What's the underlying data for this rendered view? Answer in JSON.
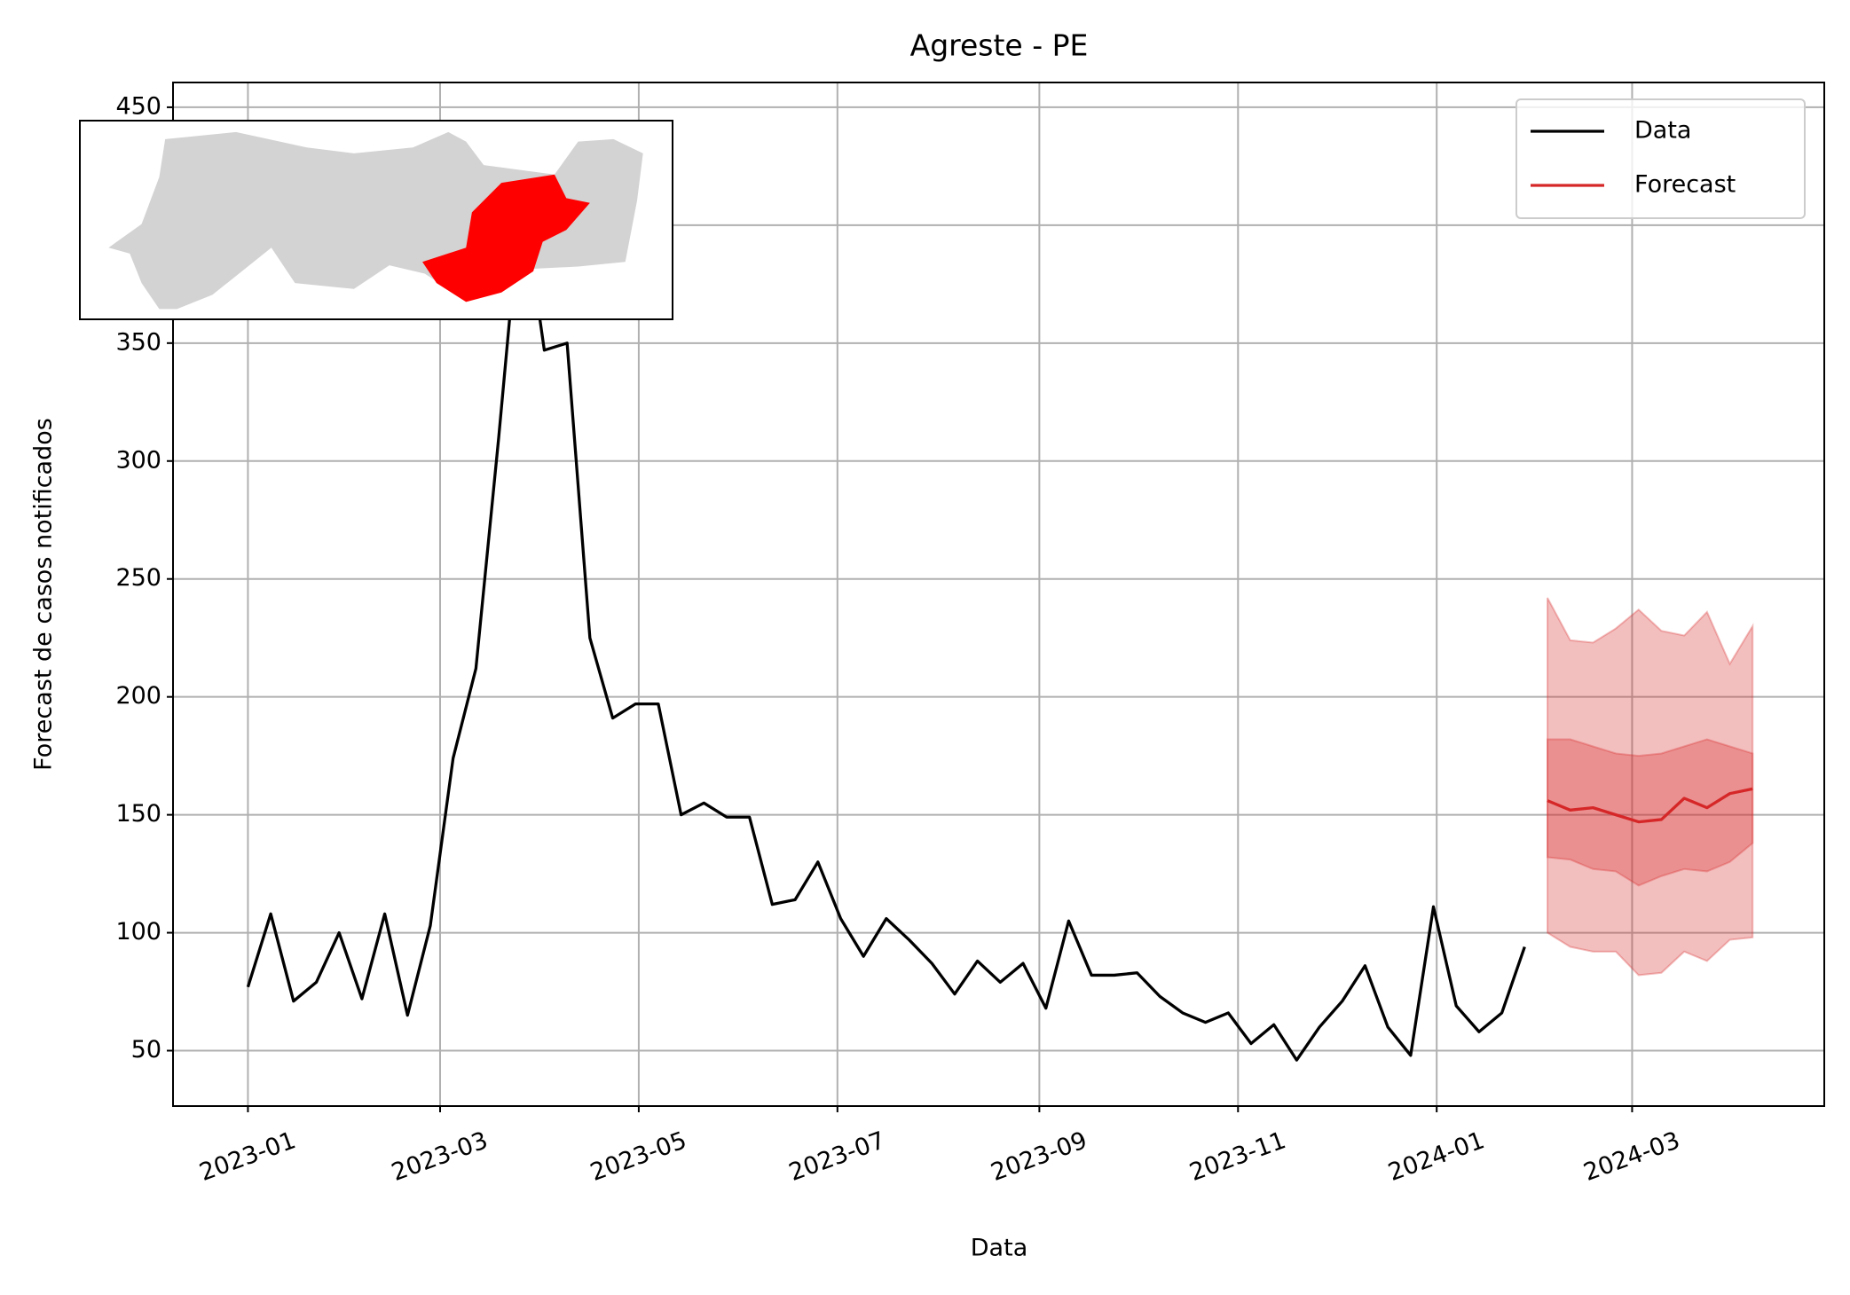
{
  "chart_data": {
    "type": "line",
    "title": "Agreste - PE",
    "xlabel": "Data",
    "ylabel": "Forecast de casos notificados",
    "xlim": [
      -23,
      484
    ],
    "xticks": [
      {
        "value": 0,
        "label": "2023-01"
      },
      {
        "value": 59,
        "label": "2023-03"
      },
      {
        "value": 120,
        "label": "2023-05"
      },
      {
        "value": 181,
        "label": "2023-07"
      },
      {
        "value": 243,
        "label": "2023-09"
      },
      {
        "value": 304,
        "label": "2023-11"
      },
      {
        "value": 365,
        "label": "2024-01"
      },
      {
        "value": 425,
        "label": "2024-03"
      }
    ],
    "ylim": [
      26.5,
      460.5
    ],
    "yticks": [
      50,
      100,
      150,
      200,
      250,
      300,
      350,
      400,
      450
    ],
    "grid": true,
    "legend": "upper right",
    "series": [
      {
        "name": "Data",
        "color": "#000000",
        "x": [
          0,
          7,
          14,
          21,
          28,
          35,
          42,
          49,
          56,
          63,
          70,
          77,
          84,
          91,
          98,
          105,
          112,
          119,
          126,
          133,
          140,
          147,
          154,
          161,
          168,
          175,
          182,
          189,
          196,
          203,
          210,
          217,
          224,
          231,
          238,
          245,
          252,
          259,
          266,
          273,
          280,
          287,
          294,
          301,
          308,
          315,
          322,
          329,
          336,
          343,
          350,
          357,
          364,
          371,
          378,
          385,
          392
        ],
        "values": [
          77,
          108,
          71,
          79,
          100,
          72,
          108,
          65,
          103,
          174,
          212,
          310,
          415,
          347,
          350,
          225,
          191,
          197,
          197,
          150,
          155,
          149,
          149,
          112,
          114,
          130,
          106,
          90,
          106,
          97,
          87,
          74,
          88,
          79,
          87,
          68,
          105,
          82,
          82,
          83,
          73,
          66,
          62,
          66,
          53,
          61,
          46,
          60,
          71,
          86,
          60,
          48,
          111,
          69,
          58,
          66,
          94
        ]
      },
      {
        "name": "Forecast",
        "color": "#d62728",
        "x": [
          399,
          406,
          413,
          420,
          427,
          434,
          441,
          448,
          455,
          462
        ],
        "values": [
          156,
          152,
          153,
          150,
          147,
          148,
          157,
          153,
          159,
          161
        ],
        "intervals": [
          {
            "lower": [
              132,
              131,
              127,
              126,
              120,
              124,
              127,
              126,
              130,
              138
            ],
            "upper": [
              182,
              182,
              179,
              176,
              175,
              176,
              179,
              182,
              179,
              176
            ]
          },
          {
            "lower": [
              100,
              94,
              92,
              92,
              82,
              83,
              92,
              88,
              97,
              98
            ],
            "upper": [
              242,
              224,
              223,
              229,
              237,
              228,
              226,
              236,
              214,
              230
            ]
          }
        ]
      }
    ]
  }
}
